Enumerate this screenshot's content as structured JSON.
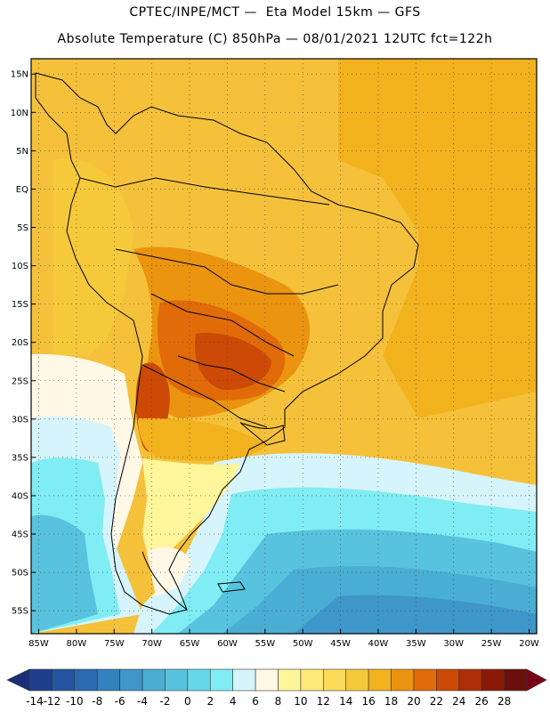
{
  "header": {
    "line1": "CPTEC/INPE/MCT —  Eta Model 15km — GFS",
    "line2": "Absolute Temperature (C) 850hPa — 08/01/2021 12UTC fct=122h"
  },
  "map": {
    "lat_labels": [
      "15N",
      "10N",
      "5N",
      "EQ",
      "5S",
      "10S",
      "15S",
      "20S",
      "25S",
      "30S",
      "35S",
      "40S",
      "45S",
      "50S",
      "55S"
    ],
    "lon_labels": [
      "85W",
      "80W",
      "75W",
      "70W",
      "65W",
      "60W",
      "55W",
      "50W",
      "45W",
      "40W",
      "35W",
      "30W",
      "25W",
      "20W"
    ],
    "lat_values": [
      15,
      10,
      5,
      0,
      -5,
      -10,
      -15,
      -20,
      -25,
      -30,
      -35,
      -40,
      -45,
      -50,
      -55
    ],
    "lon_values": [
      -85,
      -80,
      -75,
      -70,
      -65,
      -60,
      -55,
      -50,
      -45,
      -40,
      -35,
      -30,
      -25,
      -20
    ],
    "lat_range": [
      -58,
      17
    ],
    "lon_range": [
      -86,
      -19
    ],
    "field": "Absolute Temperature (C) 850hPa"
  },
  "colorbar": {
    "labels": [
      "-14",
      "-12",
      "-10",
      "-8",
      "-6",
      "-4",
      "-2",
      "0",
      "2",
      "4",
      "6",
      "8",
      "10",
      "12",
      "14",
      "16",
      "18",
      "20",
      "22",
      "24",
      "26",
      "28"
    ],
    "colors": [
      "#1f3f8c",
      "#2554a0",
      "#2b6aaf",
      "#3381bd",
      "#3e97c8",
      "#4aadd3",
      "#58c3de",
      "#66d7e8",
      "#80ecf4",
      "#d6f4fb",
      "#fff8e6",
      "#fff59a",
      "#ffe97a",
      "#fbdc5a",
      "#f6c93b",
      "#f2b21e",
      "#eb9410",
      "#e06b08",
      "#cc4a06",
      "#ad2e07",
      "#8a1a07",
      "#6b0f0a"
    ],
    "under_color": "#1b2f78",
    "over_color": "#780018"
  }
}
